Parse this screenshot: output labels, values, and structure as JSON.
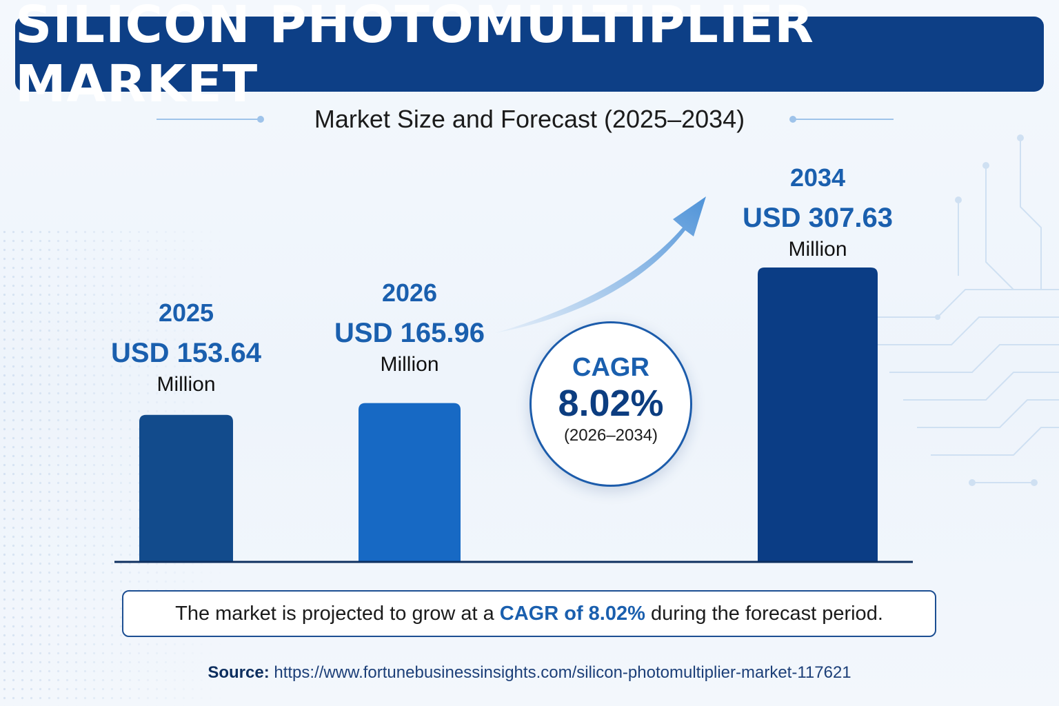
{
  "header": {
    "title": "SILICON PHOTOMULTIPLIER MARKET",
    "subtitle": "Market Size and Forecast (2025–2034)"
  },
  "chart_data": {
    "type": "bar",
    "categories": [
      "2025",
      "2026",
      "2034"
    ],
    "values": [
      153.64,
      165.96,
      307.63
    ],
    "value_labels": [
      "USD 153.64",
      "USD 165.96",
      "USD 307.63"
    ],
    "unit": "Million",
    "bar_colors": [
      "#124b8c",
      "#1769c4",
      "#0b3d85"
    ],
    "title": "SILICON PHOTOMULTIPLIER MARKET",
    "subtitle": "Market Size and Forecast (2025–2034)",
    "xlabel": "",
    "ylabel": "",
    "annotation": {
      "label": "CAGR",
      "value": "8.02%",
      "period": "(2026–2034)"
    }
  },
  "note": {
    "prefix": "The market is projected to grow at a ",
    "highlight": "CAGR of 8.02%",
    "suffix": " during the forecast period."
  },
  "source": {
    "label": "Source:",
    "url": "https://www.fortunebusinessinsights.com/silicon-photomultiplier-market-117621"
  },
  "colors": {
    "banner": "#0d3f86",
    "accent_text": "#1a5fae",
    "arrow": "#4f93d8"
  }
}
